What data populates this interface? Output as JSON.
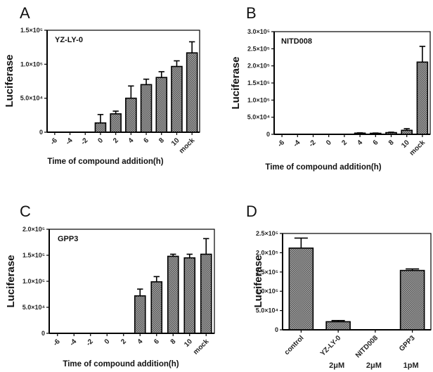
{
  "colors": {
    "bar_fill": "#8c8c8c",
    "bar_stroke": "#000000",
    "axis": "#000000"
  },
  "chart_data": [
    {
      "type": "bar",
      "panel": "A",
      "label": "YZ-LY-0",
      "ylabel": "Luciferase",
      "xlabel": "Time of compound addition(h)",
      "ylim": [
        0,
        150000
      ],
      "yticks": [
        0,
        50000,
        100000,
        150000
      ],
      "ytick_labels": [
        "0",
        "5.0×10⁴",
        "1.0×10⁵",
        "1.5×10⁵"
      ],
      "categories": [
        "-6",
        "-4",
        "-2",
        "0",
        "2",
        "4",
        "6",
        "8",
        "10",
        "mock"
      ],
      "values": [
        0,
        0,
        0,
        13600,
        27000,
        50000,
        70000,
        80500,
        96700,
        116700
      ],
      "errors": [
        0,
        0,
        0,
        12400,
        4000,
        18000,
        8000,
        8500,
        8300,
        16300
      ]
    },
    {
      "type": "bar",
      "panel": "B",
      "label": "NITD008",
      "ylabel": "Luciferase",
      "xlabel": "Time of compound addition(h)",
      "ylim": [
        0,
        300000
      ],
      "yticks": [
        0,
        50000,
        100000,
        150000,
        200000,
        250000,
        300000
      ],
      "ytick_labels": [
        "0",
        "5.0×10⁴",
        "1.0×10⁵",
        "1.5×10⁵",
        "2.0×10⁵",
        "2.5×10⁵",
        "3.0×10⁵"
      ],
      "categories": [
        "-6",
        "-4",
        "-2",
        "0",
        "2",
        "4",
        "6",
        "8",
        "10",
        "mock"
      ],
      "values": [
        0,
        0,
        0,
        0,
        0,
        3500,
        3000,
        5000,
        11700,
        211000
      ],
      "errors": [
        0,
        0,
        0,
        0,
        0,
        800,
        800,
        1200,
        4800,
        46000
      ]
    },
    {
      "type": "bar",
      "panel": "C",
      "label": "GPP3",
      "ylabel": "Luciferase",
      "xlabel": "Time of compound addition(h)",
      "ylim": [
        0,
        200000
      ],
      "yticks": [
        0,
        50000,
        100000,
        150000,
        200000
      ],
      "ytick_labels": [
        "0",
        "5.0×10⁴",
        "1.0×10⁵",
        "1.5×10⁵",
        "2.0×10⁵"
      ],
      "categories": [
        "-6",
        "-4",
        "-2",
        "0",
        "2",
        "4",
        "6",
        "8",
        "10",
        "mock"
      ],
      "values": [
        0,
        0,
        0,
        0,
        0,
        72000,
        99000,
        148000,
        145000,
        152000
      ],
      "errors": [
        0,
        0,
        0,
        0,
        0,
        13000,
        10000,
        4000,
        7000,
        30000
      ]
    },
    {
      "type": "bar",
      "panel": "D",
      "label": "",
      "ylabel": "Luciferase",
      "xlabel": "",
      "ylim": [
        0,
        250000
      ],
      "yticks": [
        0,
        50000,
        100000,
        150000,
        200000,
        250000
      ],
      "ytick_labels": [
        "0",
        "5.0×10⁴",
        "1.0×10⁵",
        "1.5×10⁵",
        "2.0×10⁵",
        "2.5×10⁵"
      ],
      "categories": [
        "control",
        "YZ-LY-0",
        "NITD008",
        "GPP3"
      ],
      "sublabels": [
        "",
        "2μM",
        "2μM",
        "1pM"
      ],
      "values": [
        212000,
        21000,
        0,
        154000
      ],
      "errors": [
        26000,
        3000,
        0,
        4000
      ]
    }
  ]
}
